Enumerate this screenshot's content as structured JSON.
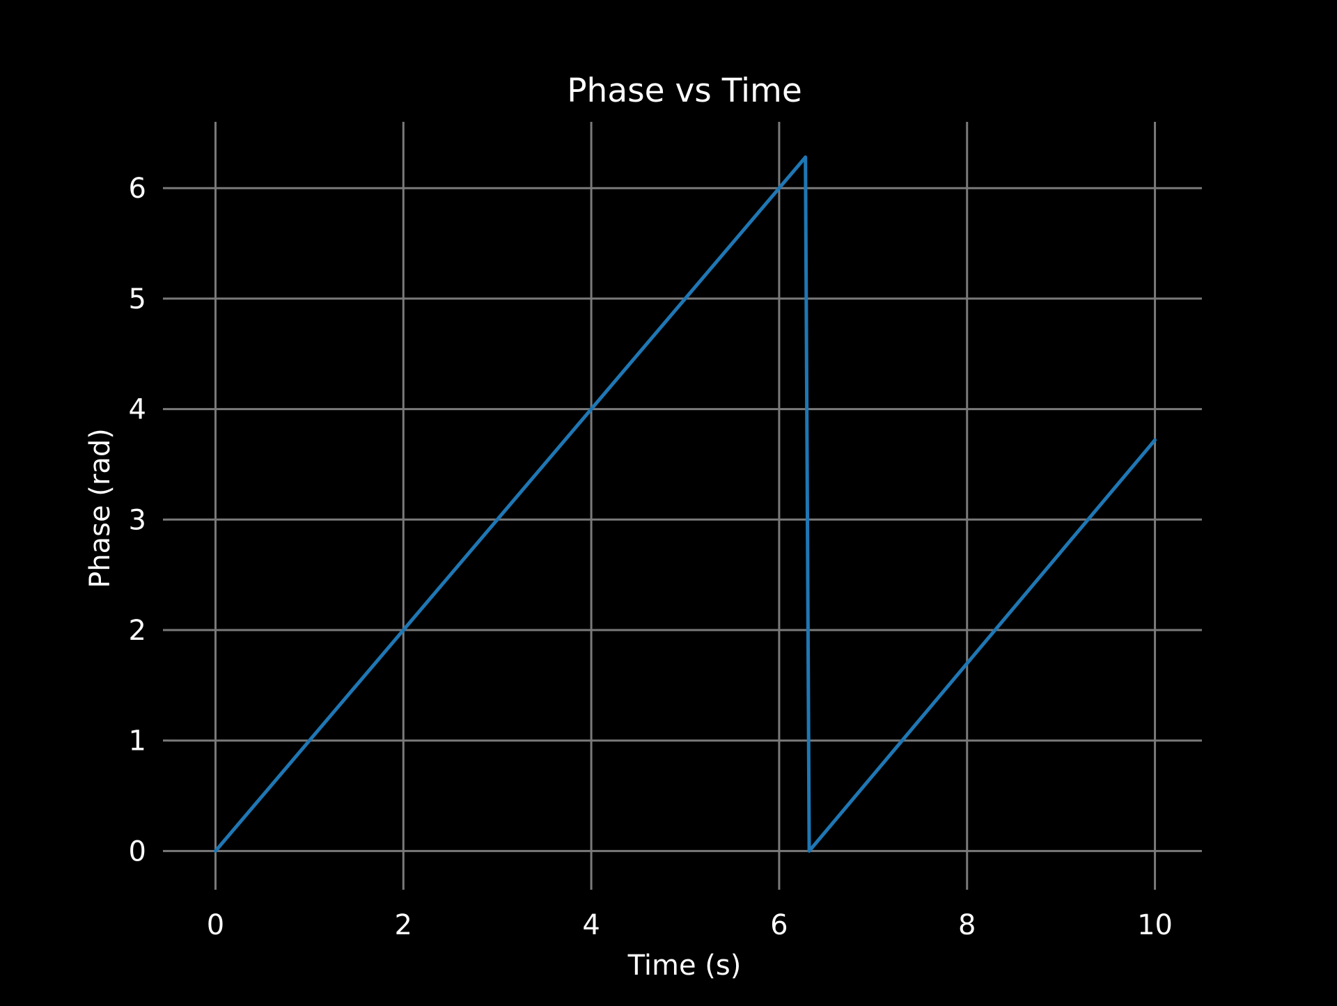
{
  "chart_data": {
    "type": "line",
    "title": "Phase vs Time",
    "xlabel": "Time (s)",
    "ylabel": "Phase (rad)",
    "xlim": [
      -0.5,
      10.5
    ],
    "ylim": [
      -0.3,
      6.6
    ],
    "xticks": [
      0,
      2,
      4,
      6,
      8,
      10
    ],
    "yticks": [
      0,
      1,
      2,
      3,
      4,
      5,
      6
    ],
    "grid": true,
    "background": "#000000",
    "text_color": "#ffffff",
    "grid_color": "#7a7a7a",
    "series": [
      {
        "color": "#1f77b4",
        "x": [
          0,
          6.26,
          6.28,
          6.32,
          10
        ],
        "y": [
          0,
          6.26,
          6.28,
          0.0,
          3.72
        ]
      }
    ]
  }
}
